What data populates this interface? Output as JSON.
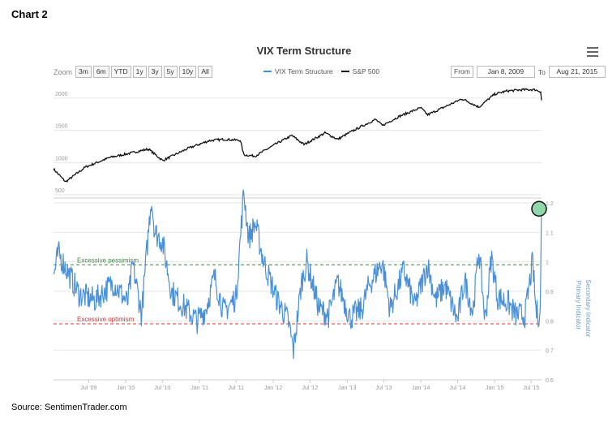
{
  "heading": "Chart 2",
  "source": "Source:  SentimenTrader.com",
  "chart_title": "VIX Term Structure",
  "toolbar": {
    "zoom_label": "Zoom",
    "zoom_buttons": [
      "3m",
      "6m",
      "YTD",
      "1y",
      "3y",
      "5y",
      "10y",
      "All"
    ],
    "from_label": "From",
    "from_value": "Jan 8, 2009",
    "to_label": "To",
    "to_value": "Aug 21, 2015"
  },
  "legend": [
    {
      "name": "VIX Term Structure",
      "color": "#4a90d9"
    },
    {
      "name": "S&P 500",
      "color": "#111111"
    }
  ],
  "colors": {
    "spx": "#111111",
    "vix": "#4a90d9",
    "pessimism": "#3a8a3a",
    "optimism": "#e03030",
    "highlight": "#8fd6a8"
  },
  "chart_data": {
    "type": "line",
    "x_tick_labels": [
      "Jul '09",
      "Jan '10",
      "Jul '10",
      "Jan '11",
      "Jul '11",
      "Jan '12",
      "Jul '12",
      "Jan '13",
      "Jul '13",
      "Jan '14",
      "Jul '14",
      "Jan '15",
      "Jul '15"
    ],
    "x_range": [
      "2009-01-08",
      "2015-08-21"
    ],
    "upper_panel": {
      "series_name": "S&P 500",
      "y_ticks": [
        "500",
        "1000",
        "1500",
        "2000"
      ],
      "y_range": [
        500,
        2200
      ],
      "anchors": [
        [
          "2009-01-08",
          900
        ],
        [
          "2009-03-09",
          700
        ],
        [
          "2009-06-15",
          930
        ],
        [
          "2009-10-15",
          1080
        ],
        [
          "2010-01-15",
          1140
        ],
        [
          "2010-04-23",
          1210
        ],
        [
          "2010-07-02",
          1030
        ],
        [
          "2010-11-05",
          1220
        ],
        [
          "2011-02-18",
          1340
        ],
        [
          "2011-04-29",
          1360
        ],
        [
          "2011-07-22",
          1345
        ],
        [
          "2011-08-08",
          1120
        ],
        [
          "2011-10-03",
          1100
        ],
        [
          "2012-01-15",
          1290
        ],
        [
          "2012-04-02",
          1420
        ],
        [
          "2012-06-01",
          1280
        ],
        [
          "2012-09-14",
          1460
        ],
        [
          "2012-11-15",
          1360
        ],
        [
          "2013-01-15",
          1470
        ],
        [
          "2013-05-21",
          1670
        ],
        [
          "2013-06-24",
          1575
        ],
        [
          "2013-09-18",
          1720
        ],
        [
          "2013-12-31",
          1850
        ],
        [
          "2014-02-03",
          1740
        ],
        [
          "2014-07-24",
          1990
        ],
        [
          "2014-10-15",
          1860
        ],
        [
          "2014-12-31",
          2060
        ],
        [
          "2015-03-02",
          2110
        ],
        [
          "2015-05-21",
          2130
        ],
        [
          "2015-07-20",
          2130
        ],
        [
          "2015-08-18",
          2100
        ],
        [
          "2015-08-21",
          1970
        ]
      ]
    },
    "lower_panel": {
      "series_name": "VIX Term Structure",
      "y_ticks": [
        "0.6",
        "0.7",
        "0.8",
        "0.9",
        "1",
        "1.1",
        "1.2"
      ],
      "y_range": [
        0.6,
        1.2
      ],
      "y_axis_labels": [
        "Secondary Indicator",
        "Primary Indicator"
      ],
      "thresholds": [
        {
          "label": "Excessive pessimism",
          "value": 0.99
        },
        {
          "label": "Excessive optimism",
          "value": 0.79
        }
      ],
      "highlighted_point": {
        "date": "2015-08-21",
        "value": 1.18
      },
      "anchors": [
        [
          "2009-01-08",
          0.95
        ],
        [
          "2009-02-01",
          1.03
        ],
        [
          "2009-03-10",
          0.98
        ],
        [
          "2009-05-15",
          0.89
        ],
        [
          "2009-08-01",
          0.87
        ],
        [
          "2009-11-01",
          0.93
        ],
        [
          "2010-01-10",
          0.86
        ],
        [
          "2010-02-05",
          0.99
        ],
        [
          "2010-03-20",
          0.82
        ],
        [
          "2010-05-07",
          1.22
        ],
        [
          "2010-05-25",
          1.1
        ],
        [
          "2010-07-01",
          1.07
        ],
        [
          "2010-08-15",
          0.9
        ],
        [
          "2010-10-01",
          0.86
        ],
        [
          "2010-12-20",
          0.8
        ],
        [
          "2011-02-01",
          0.84
        ],
        [
          "2011-03-16",
          0.95
        ],
        [
          "2011-05-01",
          0.83
        ],
        [
          "2011-07-01",
          0.88
        ],
        [
          "2011-08-08",
          1.24
        ],
        [
          "2011-09-01",
          1.08
        ],
        [
          "2011-10-04",
          1.13
        ],
        [
          "2011-11-15",
          1.0
        ],
        [
          "2012-01-15",
          0.88
        ],
        [
          "2012-03-15",
          0.8
        ],
        [
          "2012-04-10",
          0.7
        ],
        [
          "2012-05-20",
          0.93
        ],
        [
          "2012-06-15",
          1.0
        ],
        [
          "2012-08-15",
          0.84
        ],
        [
          "2012-10-01",
          0.82
        ],
        [
          "2012-11-15",
          0.93
        ],
        [
          "2013-01-15",
          0.81
        ],
        [
          "2013-03-15",
          0.84
        ],
        [
          "2013-04-18",
          0.92
        ],
        [
          "2013-06-24",
          1.0
        ],
        [
          "2013-08-01",
          0.84
        ],
        [
          "2013-10-08",
          0.97
        ],
        [
          "2013-12-01",
          0.85
        ],
        [
          "2014-02-03",
          0.99
        ],
        [
          "2014-03-15",
          0.87
        ],
        [
          "2014-05-01",
          0.92
        ],
        [
          "2014-07-01",
          0.8
        ],
        [
          "2014-08-05",
          0.94
        ],
        [
          "2014-09-15",
          0.83
        ],
        [
          "2014-10-15",
          1.04
        ],
        [
          "2014-11-15",
          0.8
        ],
        [
          "2014-12-16",
          1.02
        ],
        [
          "2015-01-15",
          0.88
        ],
        [
          "2015-03-10",
          0.86
        ],
        [
          "2015-04-15",
          0.82
        ],
        [
          "2015-06-01",
          0.82
        ],
        [
          "2015-07-08",
          1.0
        ],
        [
          "2015-07-25",
          0.83
        ],
        [
          "2015-08-14",
          0.82
        ],
        [
          "2015-08-21",
          1.18
        ]
      ]
    }
  }
}
